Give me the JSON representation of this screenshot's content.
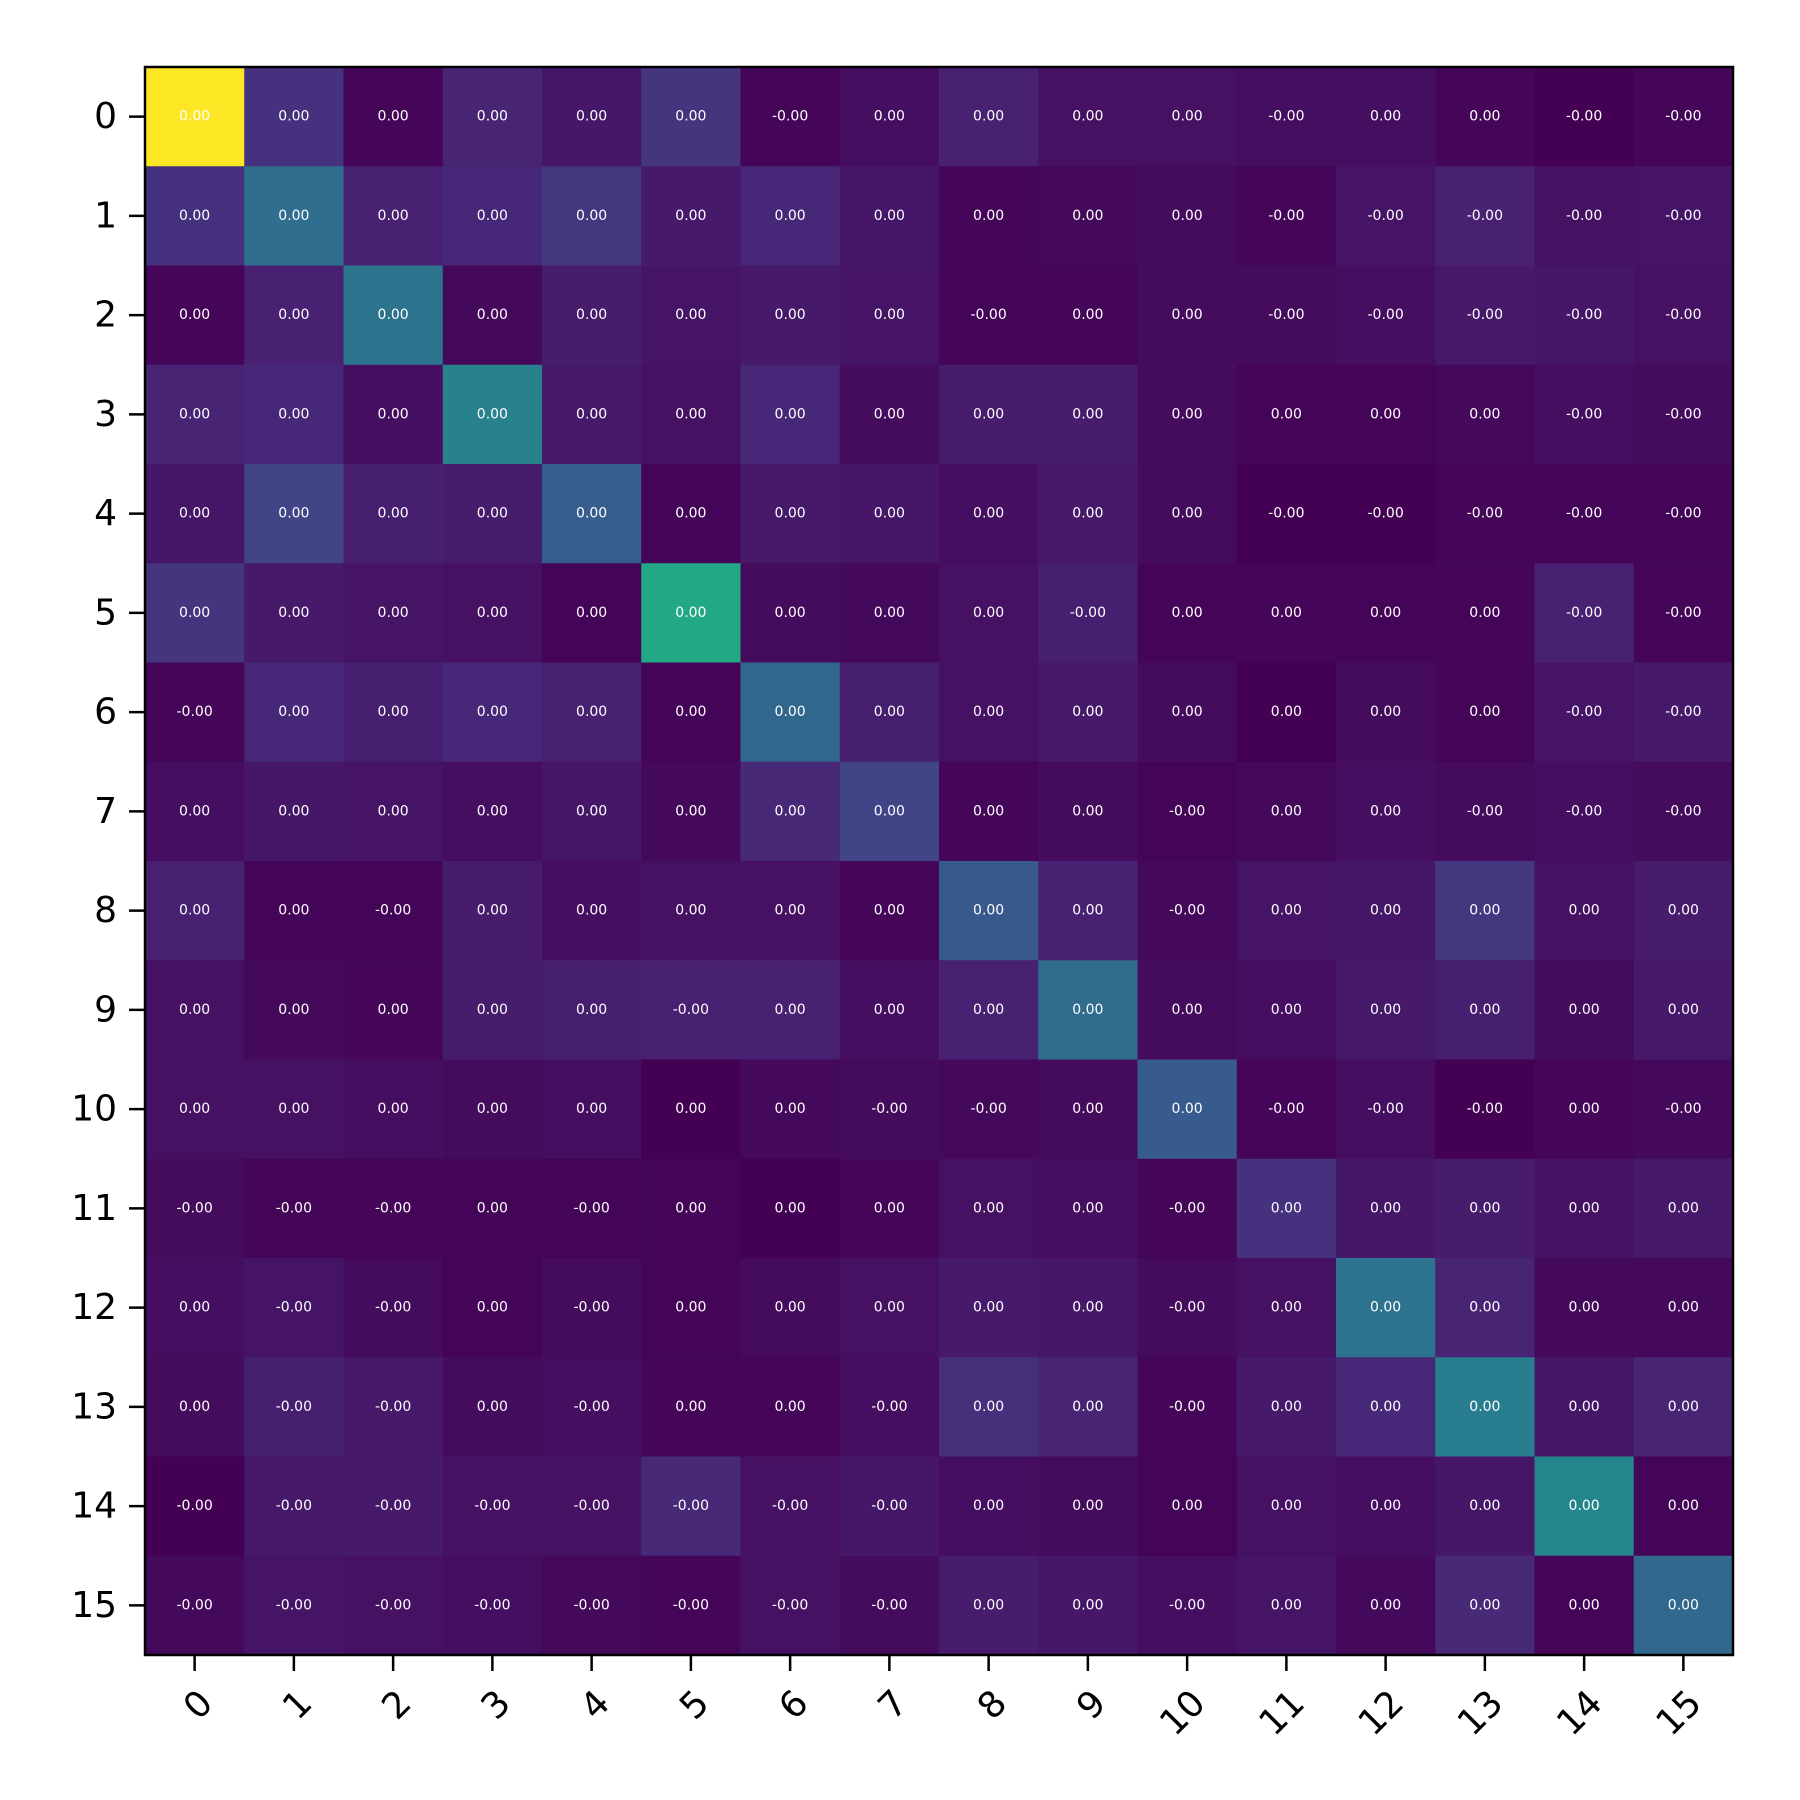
{
  "chart_data": {
    "type": "heatmap",
    "title": "",
    "xlabel": "",
    "ylabel": "",
    "colormap": "viridis",
    "x_categories": [
      "0",
      "1",
      "2",
      "3",
      "4",
      "5",
      "6",
      "7",
      "8",
      "9",
      "10",
      "11",
      "12",
      "13",
      "14",
      "15"
    ],
    "y_categories": [
      "0",
      "1",
      "2",
      "3",
      "4",
      "5",
      "6",
      "7",
      "8",
      "9",
      "10",
      "11",
      "12",
      "13",
      "14",
      "15"
    ],
    "color_intensity": [
      [
        1.0,
        0.18,
        0.02,
        0.13,
        0.08,
        0.19,
        0.02,
        0.05,
        0.12,
        0.06,
        0.06,
        0.05,
        0.05,
        0.02,
        0.0,
        0.02
      ],
      [
        0.18,
        0.45,
        0.12,
        0.14,
        0.2,
        0.09,
        0.14,
        0.08,
        0.02,
        0.03,
        0.04,
        0.02,
        0.07,
        0.12,
        0.06,
        0.07
      ],
      [
        0.02,
        0.12,
        0.48,
        0.03,
        0.1,
        0.07,
        0.09,
        0.07,
        0.01,
        0.02,
        0.04,
        0.04,
        0.05,
        0.09,
        0.08,
        0.06
      ],
      [
        0.13,
        0.14,
        0.05,
        0.55,
        0.09,
        0.06,
        0.14,
        0.04,
        0.1,
        0.1,
        0.04,
        0.01,
        0.01,
        0.03,
        0.05,
        0.04
      ],
      [
        0.08,
        0.25,
        0.11,
        0.1,
        0.37,
        0.01,
        0.09,
        0.08,
        0.05,
        0.09,
        0.04,
        0.0,
        0.0,
        0.02,
        0.01,
        0.01
      ],
      [
        0.19,
        0.09,
        0.07,
        0.06,
        0.01,
        0.75,
        0.04,
        0.03,
        0.06,
        0.11,
        0.01,
        0.02,
        0.01,
        0.02,
        0.12,
        0.02
      ],
      [
        0.02,
        0.14,
        0.11,
        0.14,
        0.12,
        0.01,
        0.42,
        0.11,
        0.06,
        0.09,
        0.04,
        0.0,
        0.04,
        0.01,
        0.07,
        0.09
      ],
      [
        0.05,
        0.08,
        0.07,
        0.05,
        0.08,
        0.03,
        0.15,
        0.25,
        0.02,
        0.04,
        0.01,
        0.03,
        0.05,
        0.04,
        0.05,
        0.04
      ],
      [
        0.12,
        0.02,
        0.01,
        0.1,
        0.05,
        0.06,
        0.06,
        0.02,
        0.35,
        0.12,
        0.03,
        0.07,
        0.08,
        0.2,
        0.06,
        0.1
      ],
      [
        0.06,
        0.03,
        0.02,
        0.1,
        0.11,
        0.12,
        0.12,
        0.05,
        0.12,
        0.44,
        0.04,
        0.05,
        0.09,
        0.11,
        0.04,
        0.09
      ],
      [
        0.06,
        0.06,
        0.05,
        0.04,
        0.05,
        0.0,
        0.03,
        0.04,
        0.03,
        0.04,
        0.36,
        0.02,
        0.05,
        0.0,
        0.02,
        0.03
      ],
      [
        0.04,
        0.01,
        0.02,
        0.01,
        0.01,
        0.02,
        0.0,
        0.02,
        0.06,
        0.05,
        0.02,
        0.18,
        0.08,
        0.1,
        0.06,
        0.09
      ],
      [
        0.05,
        0.07,
        0.04,
        0.01,
        0.04,
        0.01,
        0.04,
        0.06,
        0.09,
        0.08,
        0.04,
        0.06,
        0.47,
        0.13,
        0.03,
        0.03
      ],
      [
        0.04,
        0.11,
        0.09,
        0.04,
        0.05,
        0.02,
        0.02,
        0.05,
        0.17,
        0.13,
        0.02,
        0.09,
        0.14,
        0.53,
        0.08,
        0.13
      ],
      [
        0.0,
        0.09,
        0.09,
        0.06,
        0.06,
        0.15,
        0.06,
        0.08,
        0.05,
        0.04,
        0.01,
        0.06,
        0.05,
        0.08,
        0.57,
        0.01
      ],
      [
        0.03,
        0.07,
        0.06,
        0.05,
        0.03,
        0.02,
        0.06,
        0.04,
        0.1,
        0.08,
        0.05,
        0.07,
        0.03,
        0.15,
        0.01,
        0.43
      ]
    ],
    "labels": [
      [
        "0.00",
        "0.00",
        "0.00",
        "0.00",
        "0.00",
        "0.00",
        "-0.00",
        "0.00",
        "0.00",
        "0.00",
        "0.00",
        "-0.00",
        "0.00",
        "0.00",
        "-0.00",
        "-0.00"
      ],
      [
        "0.00",
        "0.00",
        "0.00",
        "0.00",
        "0.00",
        "0.00",
        "0.00",
        "0.00",
        "0.00",
        "0.00",
        "0.00",
        "-0.00",
        "-0.00",
        "-0.00",
        "-0.00",
        "-0.00"
      ],
      [
        "0.00",
        "0.00",
        "0.00",
        "0.00",
        "0.00",
        "0.00",
        "0.00",
        "0.00",
        "-0.00",
        "0.00",
        "0.00",
        "-0.00",
        "-0.00",
        "-0.00",
        "-0.00",
        "-0.00"
      ],
      [
        "0.00",
        "0.00",
        "0.00",
        "0.00",
        "0.00",
        "0.00",
        "0.00",
        "0.00",
        "0.00",
        "0.00",
        "0.00",
        "0.00",
        "0.00",
        "0.00",
        "-0.00",
        "-0.00"
      ],
      [
        "0.00",
        "0.00",
        "0.00",
        "0.00",
        "0.00",
        "0.00",
        "0.00",
        "0.00",
        "0.00",
        "0.00",
        "0.00",
        "-0.00",
        "-0.00",
        "-0.00",
        "-0.00",
        "-0.00"
      ],
      [
        "0.00",
        "0.00",
        "0.00",
        "0.00",
        "0.00",
        "0.00",
        "0.00",
        "0.00",
        "0.00",
        "-0.00",
        "0.00",
        "0.00",
        "0.00",
        "0.00",
        "-0.00",
        "-0.00"
      ],
      [
        "-0.00",
        "0.00",
        "0.00",
        "0.00",
        "0.00",
        "0.00",
        "0.00",
        "0.00",
        "0.00",
        "0.00",
        "0.00",
        "0.00",
        "0.00",
        "0.00",
        "-0.00",
        "-0.00"
      ],
      [
        "0.00",
        "0.00",
        "0.00",
        "0.00",
        "0.00",
        "0.00",
        "0.00",
        "0.00",
        "0.00",
        "0.00",
        "-0.00",
        "0.00",
        "0.00",
        "-0.00",
        "-0.00",
        "-0.00"
      ],
      [
        "0.00",
        "0.00",
        "-0.00",
        "0.00",
        "0.00",
        "0.00",
        "0.00",
        "0.00",
        "0.00",
        "0.00",
        "-0.00",
        "0.00",
        "0.00",
        "0.00",
        "0.00",
        "0.00"
      ],
      [
        "0.00",
        "0.00",
        "0.00",
        "0.00",
        "0.00",
        "-0.00",
        "0.00",
        "0.00",
        "0.00",
        "0.00",
        "0.00",
        "0.00",
        "0.00",
        "0.00",
        "0.00",
        "0.00"
      ],
      [
        "0.00",
        "0.00",
        "0.00",
        "0.00",
        "0.00",
        "0.00",
        "0.00",
        "-0.00",
        "-0.00",
        "0.00",
        "0.00",
        "-0.00",
        "-0.00",
        "-0.00",
        "0.00",
        "-0.00"
      ],
      [
        "-0.00",
        "-0.00",
        "-0.00",
        "0.00",
        "-0.00",
        "0.00",
        "0.00",
        "0.00",
        "0.00",
        "0.00",
        "-0.00",
        "0.00",
        "0.00",
        "0.00",
        "0.00",
        "0.00"
      ],
      [
        "0.00",
        "-0.00",
        "-0.00",
        "0.00",
        "-0.00",
        "0.00",
        "0.00",
        "0.00",
        "0.00",
        "0.00",
        "-0.00",
        "0.00",
        "0.00",
        "0.00",
        "0.00",
        "0.00"
      ],
      [
        "0.00",
        "-0.00",
        "-0.00",
        "0.00",
        "-0.00",
        "0.00",
        "0.00",
        "-0.00",
        "0.00",
        "0.00",
        "-0.00",
        "0.00",
        "0.00",
        "0.00",
        "0.00",
        "0.00"
      ],
      [
        "-0.00",
        "-0.00",
        "-0.00",
        "-0.00",
        "-0.00",
        "-0.00",
        "-0.00",
        "-0.00",
        "0.00",
        "0.00",
        "0.00",
        "0.00",
        "0.00",
        "0.00",
        "0.00",
        "0.00"
      ],
      [
        "-0.00",
        "-0.00",
        "-0.00",
        "-0.00",
        "-0.00",
        "-0.00",
        "-0.00",
        "-0.00",
        "0.00",
        "0.00",
        "-0.00",
        "0.00",
        "0.00",
        "0.00",
        "0.00",
        "0.00"
      ]
    ],
    "grid": false,
    "legend": "none"
  }
}
